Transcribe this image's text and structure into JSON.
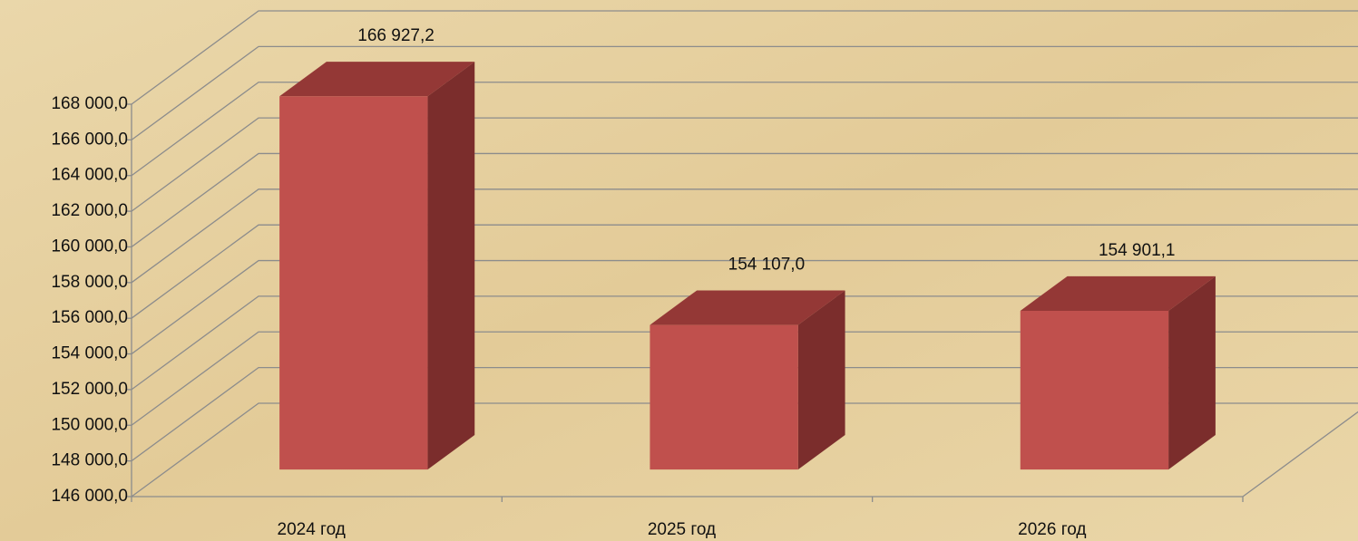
{
  "chart_data": {
    "type": "bar3d",
    "categories": [
      "2024 год",
      "2025 год",
      "2026 год"
    ],
    "values": [
      166927.2,
      154107.0,
      154901.1
    ],
    "value_labels": [
      "166 927,2",
      "154 107,0",
      "154 901,1"
    ],
    "color": "#c0504d",
    "ylim": [
      146000,
      168000
    ],
    "yticks": [
      {
        "value": 146000,
        "label": "146 000,0"
      },
      {
        "value": 148000,
        "label": "148 000,0"
      },
      {
        "value": 150000,
        "label": "150 000,0"
      },
      {
        "value": 152000,
        "label": "152 000,0"
      },
      {
        "value": 154000,
        "label": "154 000,0"
      },
      {
        "value": 156000,
        "label": "156 000,0"
      },
      {
        "value": 158000,
        "label": "158 000,0"
      },
      {
        "value": 160000,
        "label": "160 000,0"
      },
      {
        "value": 162000,
        "label": "162 000,0"
      },
      {
        "value": 164000,
        "label": "164 000,0"
      },
      {
        "value": 166000,
        "label": "166 000,0"
      },
      {
        "value": 168000,
        "label": "168 000,0"
      }
    ],
    "grid": true
  }
}
